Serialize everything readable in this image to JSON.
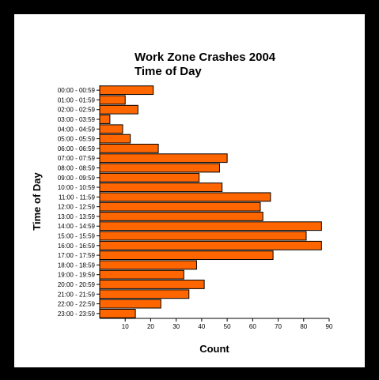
{
  "chart_data": {
    "type": "bar",
    "orientation": "horizontal",
    "title": "Work Zone Crashes 2004",
    "subtitle": "Time of Day",
    "xlabel": "Count",
    "ylabel": "Time of Day",
    "xlim": [
      0,
      90
    ],
    "xticks": [
      10,
      20,
      30,
      40,
      50,
      60,
      70,
      80,
      90
    ],
    "grid": false,
    "bar_color": "#ff6600",
    "bar_edge_color": "#000000",
    "categories": [
      "00:00 - 00:59",
      "01:00 - 01:59",
      "02:00 - 02:59",
      "03:00 - 03:59",
      "04:00 - 04:59",
      "05:00 - 05:59",
      "06:00 - 06:59",
      "07:00 - 07:59",
      "08:00 - 08:59",
      "09:00 - 09:59",
      "10:00 - 10:59",
      "11:00 - 11:59",
      "12:00 - 12:59",
      "13:00 - 13:59",
      "14:00 - 14:59",
      "15:00 - 15:59",
      "16:00 - 16:59",
      "17:00 - 17:59",
      "18:00 - 18:59",
      "19:00 - 19:59",
      "20:00 - 20:59",
      "21:00 - 21:59",
      "22:00 - 22:59",
      "23:00 - 23:59"
    ],
    "values": [
      21,
      10,
      15,
      4,
      9,
      12,
      23,
      50,
      47,
      39,
      48,
      67,
      63,
      64,
      87,
      81,
      87,
      68,
      38,
      33,
      41,
      35,
      24,
      14
    ]
  }
}
